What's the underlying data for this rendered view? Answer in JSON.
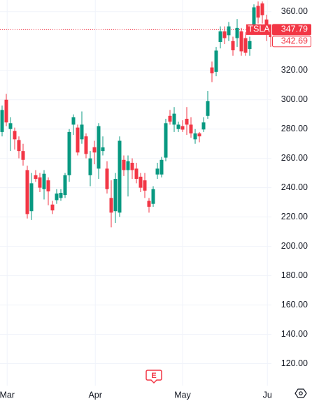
{
  "chart_data": {
    "type": "candlestick",
    "symbol": "TSLA",
    "up_color": "#089981",
    "down_color": "#f23645",
    "series": {
      "open": [
        278,
        300,
        280,
        278.7,
        272.5,
        265,
        252,
        224,
        248.5,
        247,
        239,
        245,
        228.5,
        231.5,
        233,
        235,
        248.5,
        283,
        281,
        273,
        275,
        248.5,
        267.6,
        253,
        265,
        253,
        233,
        224,
        223,
        259,
        252,
        257,
        253,
        247.5,
        245,
        231,
        229,
        249,
        249,
        260.5,
        289,
        283,
        280,
        282,
        287,
        283,
        273,
        277,
        279.7,
        289,
        322,
        319,
        339.4,
        346.6,
        344,
        340,
        342,
        346.6,
        342,
        334.6,
        349,
        364,
        365.7,
        354.7,
        350
      ],
      "high": [
        296,
        304,
        288,
        281,
        275,
        270,
        255,
        250,
        252,
        250,
        252,
        247,
        231,
        239,
        239,
        250,
        280,
        290,
        283,
        292,
        277,
        265,
        272,
        284,
        275,
        258,
        245,
        250,
        275,
        262,
        262,
        260,
        257,
        250,
        250,
        233,
        241,
        257,
        261,
        287,
        293,
        295,
        285,
        286,
        295,
        288,
        280,
        278,
        288,
        306,
        326,
        336,
        350,
        350,
        353,
        343,
        355,
        349,
        346,
        343,
        365,
        367,
        367,
        358,
        351
      ],
      "low": [
        275,
        282,
        265,
        266,
        260,
        255,
        219,
        218,
        244,
        237,
        232,
        228,
        222,
        229,
        231,
        233,
        244,
        276,
        262,
        270,
        260,
        241,
        256,
        246,
        262,
        236,
        213,
        216,
        220,
        248,
        234,
        246,
        243,
        237,
        233,
        223,
        227,
        246,
        247,
        258,
        283,
        278,
        278,
        278,
        276,
        274,
        270,
        271,
        278,
        287,
        312,
        316,
        335,
        338,
        340,
        330,
        336,
        330,
        330,
        330,
        345,
        352,
        352,
        340,
        336
      ],
      "close": [
        293,
        284.5,
        284,
        273,
        265,
        259,
        222,
        243,
        246,
        240,
        249.5,
        237.5,
        224.5,
        236,
        236.5,
        248.5,
        278,
        288,
        264,
        283,
        263,
        260,
        264,
        282,
        267.5,
        239,
        223,
        246,
        272,
        252,
        258,
        252,
        246,
        240,
        238,
        227,
        239,
        253,
        259,
        284,
        285,
        290.5,
        283,
        279.6,
        283,
        277,
        277,
        275,
        284.5,
        299,
        318,
        333.5,
        346.6,
        342,
        350,
        333.7,
        349,
        333,
        332,
        340,
        363,
        356,
        357.6,
        346.6,
        342.69
      ]
    },
    "ylim": [
      105,
      368
    ],
    "yticks": [
      {
        "value": 120,
        "label": "120.00"
      },
      {
        "value": 140,
        "label": "140.00"
      },
      {
        "value": 160,
        "label": "160.00"
      },
      {
        "value": 180,
        "label": "180.00"
      },
      {
        "value": 200,
        "label": "200.00"
      },
      {
        "value": 220,
        "label": "220.00"
      },
      {
        "value": 240,
        "label": "240.00"
      },
      {
        "value": 260,
        "label": "260.00"
      },
      {
        "value": 280,
        "label": "280.00"
      },
      {
        "value": 300,
        "label": "300.00"
      },
      {
        "value": 320,
        "label": "320.00"
      },
      {
        "value": 360,
        "label": "360.00"
      }
    ],
    "xticks": [
      {
        "value": 1.2,
        "label": "Mar"
      },
      {
        "value": 22.2,
        "label": "Apr"
      },
      {
        "value": 43,
        "label": "May"
      },
      {
        "value": 63.2,
        "label": "Ju"
      }
    ],
    "last_price": 347.79,
    "extended_price": 342.69,
    "earnings_marker": "E",
    "grid": true
  }
}
